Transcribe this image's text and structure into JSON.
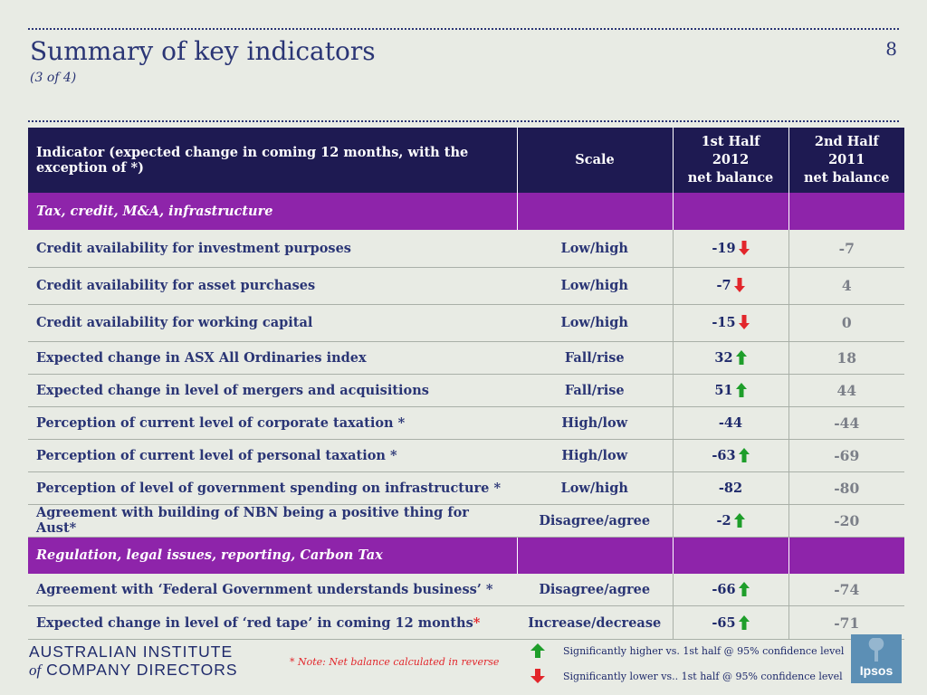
{
  "header": {
    "title": "Summary of key indicators",
    "subtitle": "(3 of 4)",
    "page_number": "8"
  },
  "table": {
    "headers": {
      "indicator": "Indicator (expected change in coming 12 months, with the exception of *)",
      "scale": "Scale",
      "h1_line1": "1st Half",
      "h1_line2": "2012",
      "h1_line3": "net balance",
      "h2_line1": "2nd Half",
      "h2_line2": "2011",
      "h2_line3": "net balance"
    },
    "sections": [
      {
        "title": "Tax, credit, M&A, infrastructure",
        "rows": [
          {
            "indicator": "Credit availability for investment purposes",
            "scale": "Low/high",
            "h1_2012": "-19",
            "trend": "down",
            "h2_2011": "-7"
          },
          {
            "indicator": "Credit availability for asset purchases",
            "scale": "Low/high",
            "h1_2012": "-7",
            "trend": "down",
            "h2_2011": "4"
          },
          {
            "indicator": "Credit availability for working capital",
            "scale": "Low/high",
            "h1_2012": "-15",
            "trend": "down",
            "h2_2011": "0"
          },
          {
            "indicator": "Expected change in ASX All Ordinaries index",
            "scale": "Fall/rise",
            "h1_2012": "32",
            "trend": "up",
            "h2_2011": "18"
          },
          {
            "indicator": "Expected change in level of mergers and acquisitions",
            "scale": "Fall/rise",
            "h1_2012": "51",
            "trend": "up",
            "h2_2011": "44"
          },
          {
            "indicator": "Perception of current level of corporate taxation *",
            "scale": "High/low",
            "h1_2012": "-44",
            "trend": "none",
            "h2_2011": "-44"
          },
          {
            "indicator": "Perception of current level of personal taxation *",
            "scale": "High/low",
            "h1_2012": "-63",
            "trend": "up",
            "h2_2011": "-69"
          },
          {
            "indicator": "Perception of level of government spending on infrastructure *",
            "scale": "Low/high",
            "h1_2012": "-82",
            "trend": "none",
            "h2_2011": "-80"
          },
          {
            "indicator": "Agreement with building of NBN being a positive thing for Aust*",
            "scale": "Disagree/agree",
            "h1_2012": "-2",
            "trend": "up",
            "h2_2011": "-20"
          }
        ]
      },
      {
        "title": "Regulation, legal issues, reporting, Carbon Tax",
        "rows": [
          {
            "indicator": "Agreement with ‘Federal Government understands business’ *",
            "scale": "Disagree/agree",
            "h1_2012": "-66",
            "trend": "up",
            "h2_2011": "-74"
          },
          {
            "indicator": "Expected change in level of ‘red tape’ in coming 12 months",
            "indicator_asterisk": "*",
            "scale": "Increase/decrease",
            "h1_2012": "-65",
            "trend": "up",
            "h2_2011": "-71"
          }
        ]
      }
    ]
  },
  "footer": {
    "logo_line1": "AUSTRALIAN INSTITUTE",
    "logo_line2_prefix": "of",
    "logo_line2": "COMPANY DIRECTORS",
    "note": "* Note: Net balance calculated in reverse",
    "legend_up": "Significantly higher vs. 1st half @ 95% confidence level",
    "legend_down": "Significantly lower vs.. 1st half @ 95% confidence level",
    "ipsos": "Ipsos"
  },
  "colors": {
    "header_bg": "#1e1a52",
    "section_bg": "#8e24aa",
    "arrow_up": "#1e9e2a",
    "arrow_down": "#e2262b",
    "text_navy": "#2a3575"
  }
}
